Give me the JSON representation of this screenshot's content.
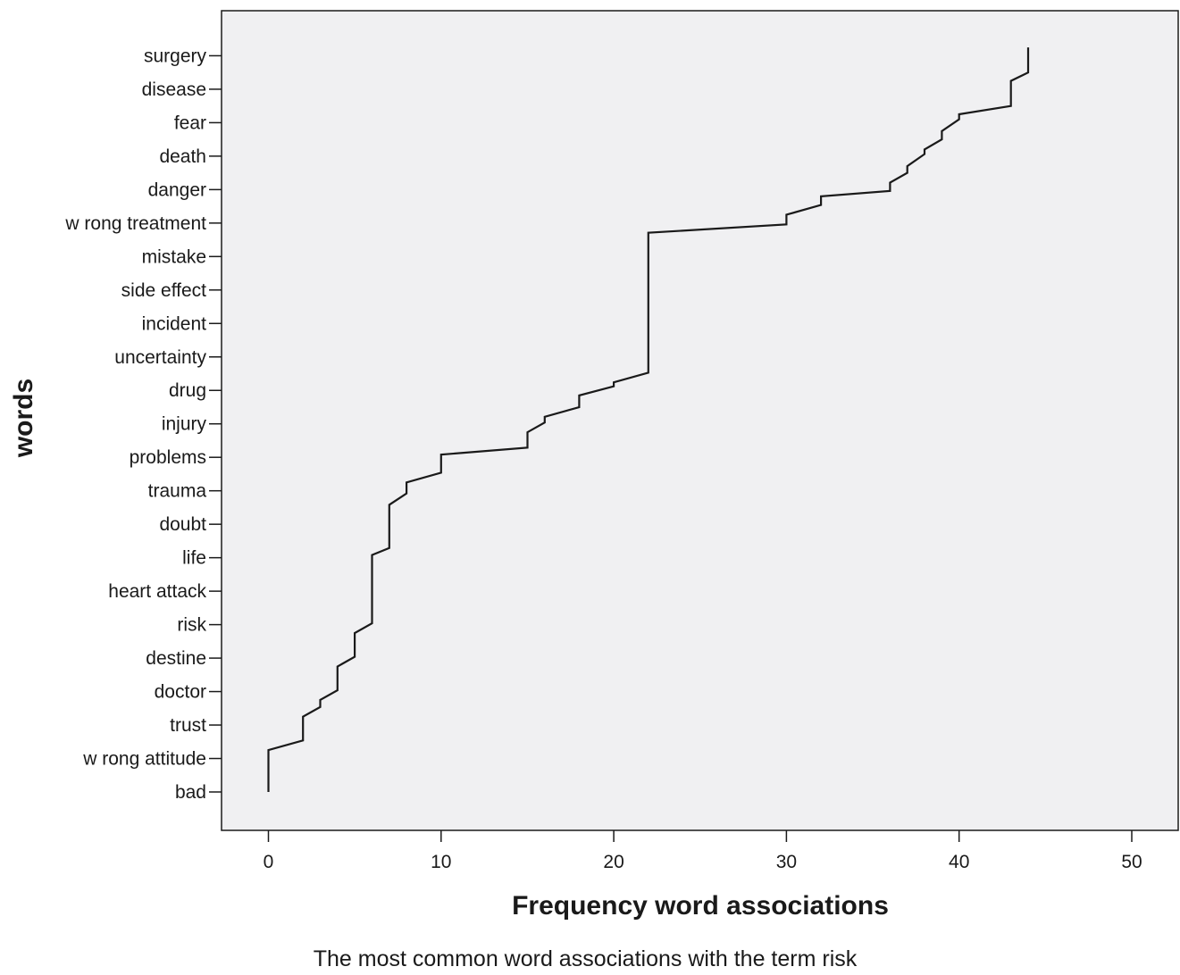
{
  "chart_data": {
    "type": "line",
    "line_style": "step",
    "xlabel": "Frequency word associations",
    "ylabel": "words",
    "xlim": [
      0,
      50
    ],
    "x_ticks": [
      0,
      10,
      20,
      30,
      40,
      50
    ],
    "grid": false,
    "background": "#f0f0f2",
    "line_color": "#1a1a1a",
    "categories": [
      "bad",
      "w rong attitude",
      "trust",
      "doctor",
      "destine",
      "risk",
      "heart attack",
      "life",
      "doubt",
      "trauma",
      "problems",
      "injury",
      "drug",
      "uncertainty",
      "incident",
      "side effect",
      "mistake",
      "w rong treatment",
      "danger",
      "death",
      "fear",
      "disease",
      "surgery"
    ],
    "series": [
      {
        "x": [
          0,
          0,
          2,
          2,
          3,
          3,
          4,
          4,
          5,
          5,
          6,
          6,
          7,
          7,
          8,
          8,
          10,
          10,
          15,
          15,
          16,
          16,
          18,
          18,
          20,
          20,
          22,
          22,
          30,
          30,
          32,
          32,
          36,
          36,
          37,
          37,
          38,
          38,
          39,
          39,
          40,
          40,
          43,
          43,
          44,
          44
        ],
        "y": [
          0,
          1.25,
          1.54,
          2.25,
          2.54,
          2.75,
          3.04,
          3.75,
          4.04,
          4.75,
          5.04,
          7.08,
          7.29,
          8.58,
          8.92,
          9.25,
          9.54,
          10.08,
          10.29,
          10.75,
          11.04,
          11.21,
          11.5,
          11.85,
          12.12,
          12.24,
          12.53,
          16.71,
          16.96,
          17.25,
          17.54,
          17.8,
          17.96,
          18.21,
          18.5,
          18.7,
          19.06,
          19.2,
          19.5,
          19.75,
          20.1,
          20.25,
          20.5,
          21.25,
          21.5,
          22.25
        ]
      }
    ]
  },
  "caption": "The most common word associations with the term risk"
}
